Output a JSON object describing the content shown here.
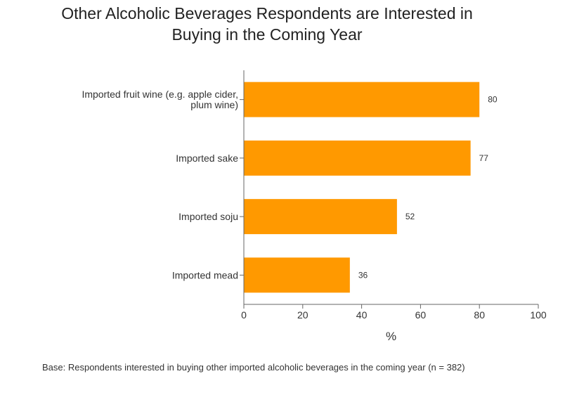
{
  "chart_data": {
    "type": "bar",
    "orientation": "horizontal",
    "title_lines": [
      "Other Alcoholic Beverages Respondents are Interested in",
      "Buying in the Coming Year"
    ],
    "categories": [
      [
        "Imported fruit wine (e.g. apple cider,",
        "plum wine)"
      ],
      [
        "Imported sake"
      ],
      [
        "Imported soju"
      ],
      [
        "Imported mead"
      ]
    ],
    "values": [
      80,
      77,
      52,
      36
    ],
    "data_labels": [
      "80",
      "77",
      "52",
      "36"
    ],
    "xlabel": "%",
    "xlim": [
      0,
      100
    ],
    "xticks": [
      0,
      20,
      40,
      60,
      80,
      100
    ],
    "xtick_labels": [
      "0",
      "20",
      "40",
      "60",
      "80",
      "100"
    ],
    "bar_color": "#ff9900",
    "grid": false,
    "legend": "none"
  },
  "footnote": "Base: Respondents interested in buying other imported alcoholic beverages in the coming year (n = 382)"
}
